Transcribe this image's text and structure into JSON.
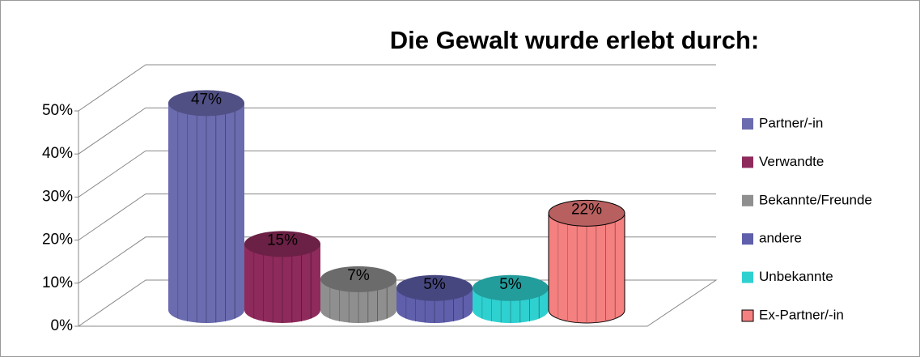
{
  "chart_data": {
    "type": "bar3d",
    "title": "Die Gewalt wurde erlebt durch:",
    "categories": [
      "Partner/-in",
      "Verwandte",
      "Bekannte/Freunde",
      "andere",
      "Unbekannte",
      "Ex-Partner/-in"
    ],
    "values": [
      47,
      15,
      7,
      5,
      5,
      22
    ],
    "value_labels": [
      "47%",
      "15%",
      "7%",
      "5%",
      "5%",
      "22%"
    ],
    "colors": [
      "#6b6bb0",
      "#8e2a5c",
      "#8f8f8f",
      "#5f5fab",
      "#2fd0d0",
      "#f58080"
    ],
    "ylim": [
      0,
      50
    ],
    "yticks": [
      {
        "value": 0,
        "label": "0%"
      },
      {
        "value": 10,
        "label": "10%"
      },
      {
        "value": 20,
        "label": "20%"
      },
      {
        "value": 30,
        "label": "30%"
      },
      {
        "value": 40,
        "label": "40%"
      },
      {
        "value": 50,
        "label": "50%"
      }
    ],
    "grid": true,
    "legend": "right"
  }
}
